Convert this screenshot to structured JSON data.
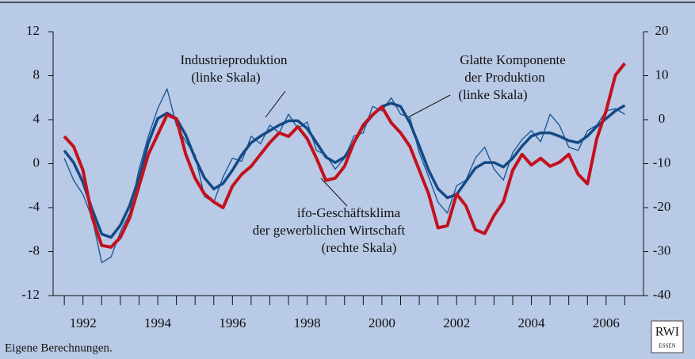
{
  "chart_data": {
    "type": "line",
    "x": [
      1991.5,
      1991.75,
      1992,
      1992.25,
      1992.5,
      1992.75,
      1993,
      1993.25,
      1993.5,
      1993.75,
      1994,
      1994.25,
      1994.5,
      1994.75,
      1995,
      1995.25,
      1995.5,
      1995.75,
      1996,
      1996.25,
      1996.5,
      1996.75,
      1997,
      1997.25,
      1997.5,
      1997.75,
      1998,
      1998.25,
      1998.5,
      1998.75,
      1999,
      1999.25,
      1999.5,
      1999.75,
      2000,
      2000.25,
      2000.5,
      2000.75,
      2001,
      2001.25,
      2001.5,
      2001.75,
      2002,
      2002.25,
      2002.5,
      2002.75,
      2003,
      2003.25,
      2003.5,
      2003.75,
      2004,
      2004.25,
      2004.5,
      2004.75,
      2005,
      2005.25,
      2005.5,
      2005.75,
      2006,
      2006.25,
      2006.5
    ],
    "series": [
      {
        "name": "Industrieproduktion (linke Skala)",
        "color": "#1d5a96",
        "width": 1.4,
        "axis": "y",
        "values": [
          0.5,
          -1.5,
          -2.8,
          -5,
          -9,
          -8.5,
          -6.2,
          -4.5,
          -0.5,
          2.5,
          5,
          6.8,
          3.5,
          2,
          0.8,
          -3,
          -3.5,
          -1.2,
          0.5,
          0.2,
          2.5,
          1.8,
          3.5,
          2.8,
          4.5,
          3.2,
          3.8,
          1.2,
          0.8,
          -0.5,
          0.5,
          2.5,
          2.8,
          5.2,
          4.8,
          6,
          4.5,
          4.2,
          1,
          -1.2,
          -3.5,
          -4.5,
          -2,
          -1.5,
          0.5,
          1.5,
          -0.5,
          -1.5,
          1,
          2.2,
          3,
          2,
          4.5,
          3.5,
          1.5,
          1.2,
          3,
          3.5,
          4.8,
          5,
          4.5
        ]
      },
      {
        "name": "Glatte Komponente der Produktion (linke Skala)",
        "color": "#134a86",
        "width": 3.5,
        "axis": "y",
        "values": [
          1.2,
          0.1,
          -1.7,
          -4.2,
          -6.4,
          -6.7,
          -5.6,
          -3.8,
          -1.3,
          1.9,
          4.1,
          4.6,
          4.1,
          2.6,
          0.5,
          -1.3,
          -2.3,
          -1.8,
          -0.6,
          0.8,
          1.9,
          2.5,
          3,
          3.5,
          3.9,
          3.9,
          3.2,
          1.9,
          0.6,
          0.1,
          0.6,
          1.9,
          3.4,
          4.4,
          5.2,
          5.5,
          5.2,
          3.7,
          1.6,
          -0.6,
          -2.3,
          -3.1,
          -2.8,
          -1.6,
          -0.4,
          0.1,
          0.1,
          -0.3,
          0.5,
          1.6,
          2.5,
          2.8,
          2.8,
          2.5,
          2.1,
          1.9,
          2.5,
          3.4,
          4.1,
          4.8,
          5.3
        ]
      },
      {
        "name": "ifo-Geschäftsklima der gewerblichen Wirtschaft (rechte Skala)",
        "color": "#c3111d",
        "width": 4,
        "axis": "y2",
        "values": [
          -3.8,
          -6.1,
          -11.5,
          -22.3,
          -28.6,
          -29,
          -26.8,
          -22.3,
          -15.1,
          -7.9,
          -3.4,
          1.1,
          0.2,
          -7.9,
          -13.3,
          -16.9,
          -18.7,
          -20,
          -15.1,
          -12.4,
          -10.6,
          -7.9,
          -5.2,
          -3,
          -3.8,
          -1.6,
          -4.3,
          -8.8,
          -13.8,
          -13.3,
          -10.6,
          -5.2,
          -1.2,
          1.1,
          2.9,
          -0.7,
          -3,
          -6.1,
          -11.5,
          -16.9,
          -24.6,
          -24.1,
          -16.9,
          -19.6,
          -25,
          -25.9,
          -21.8,
          -18.7,
          -11.5,
          -7.9,
          -10.3,
          -8.8,
          -10.6,
          -9.7,
          -7.9,
          -12.4,
          -14.6,
          -4.3,
          2,
          10.1,
          12.8
        ]
      }
    ],
    "annotations": [
      {
        "lines": [
          "Industrieproduktion",
          "(linke Skala)"
        ]
      },
      {
        "lines": [
          "Glatte Komponente",
          "der Produktion",
          "(linke Skala)"
        ]
      },
      {
        "lines": [
          "ifo-Geschäftsklima",
          "der gewerblichen Wirtschaft",
          "(rechte Skala)"
        ]
      }
    ],
    "xlim": [
      1991.2,
      2007.0
    ],
    "xticks": [
      1992,
      1994,
      1996,
      1998,
      2000,
      2002,
      2004,
      2006
    ],
    "xminorticks": [
      1991.5,
      1992,
      1992.5,
      1993,
      1993.5,
      1994,
      1994.5,
      1995,
      1995.5,
      1996,
      1996.5,
      1997,
      1997.5,
      1998,
      1998.5,
      1999,
      1999.5,
      2000,
      2000.5,
      2001,
      2001.5,
      2002,
      2002.5,
      2003,
      2003.5,
      2004,
      2004.5,
      2005,
      2005.5,
      2006,
      2006.5
    ],
    "ylim": [
      -12,
      12
    ],
    "yticks": [
      -12,
      -8,
      -4,
      0,
      4,
      8,
      12
    ],
    "y2lim": [
      -40,
      20
    ],
    "y2ticks": [
      -40,
      -30,
      -20,
      -10,
      0,
      10,
      20
    ],
    "footnote": "Eigene Berechnungen.",
    "logo": [
      "RWI",
      "ESSEN"
    ]
  }
}
